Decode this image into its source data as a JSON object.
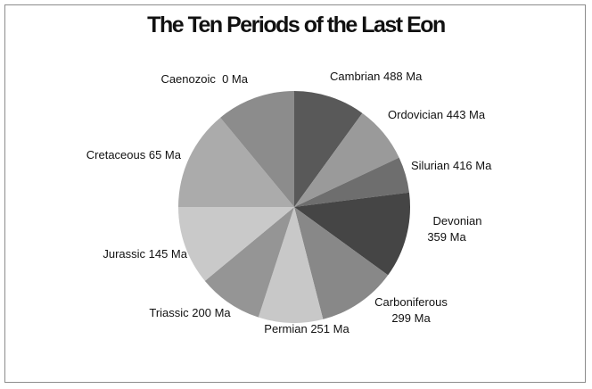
{
  "chart_data": {
    "type": "pie",
    "title": "The Ten Periods of the Last Eon",
    "slices": [
      {
        "label": "Cambrian 488 Ma",
        "value": 10,
        "color": "#595959"
      },
      {
        "label": "Ordovician 443 Ma",
        "value": 8,
        "color": "#9a9a9a"
      },
      {
        "label": "Silurian 416 Ma",
        "value": 5,
        "color": "#6e6e6e"
      },
      {
        "label": "Devonian 359 Ma",
        "value": 12,
        "color": "#454545"
      },
      {
        "label": "Carboniferous 299 Ma",
        "value": 11,
        "color": "#888888"
      },
      {
        "label": "Permian 251 Ma",
        "value": 9,
        "color": "#c8c8c8"
      },
      {
        "label": "Triassic 200 Ma",
        "value": 9,
        "color": "#959595"
      },
      {
        "label": "Jurassic 145 Ma",
        "value": 11,
        "color": "#c9c9c9"
      },
      {
        "label": "Cretaceous 65 Ma",
        "value": 14,
        "color": "#ababab"
      },
      {
        "label": "Caenozoic  0 Ma",
        "value": 11,
        "color": "#8c8c8c"
      }
    ]
  }
}
